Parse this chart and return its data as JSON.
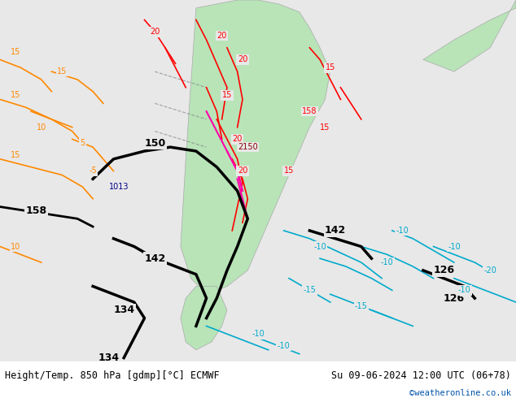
{
  "title_left": "Height/Temp. 850 hPa [gdmp][°C] ECMWF",
  "title_right": "Su 09-06-2024 12:00 UTC (06+78)",
  "credit": "©weatheronline.co.uk",
  "bg_color": "#e8e8e8",
  "land_color": "#b8e4b8",
  "border_color": "#aaaaaa",
  "figsize": [
    6.34,
    4.9
  ],
  "dpi": 100,
  "bottom_label_color": "#000000",
  "credit_color": "#0055aa"
}
